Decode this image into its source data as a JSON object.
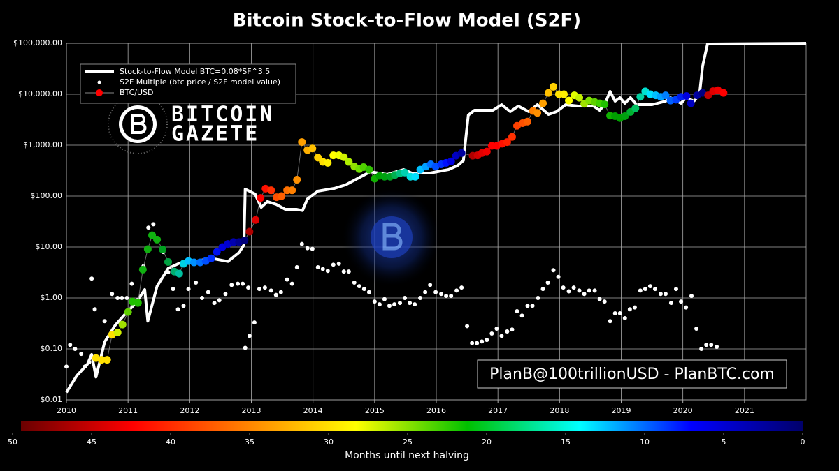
{
  "chart_data": {
    "type": "line",
    "title": "Bitcoin Stock-to-Flow Model (S2F)",
    "annotation": "PlanB@100trillionUSD - PlanBTC.com",
    "watermark": {
      "line1": "BITCOIN",
      "line2": "GAZETE"
    },
    "xlim": [
      2010,
      2022
    ],
    "xticks": [
      2010,
      2011,
      2012,
      2013,
      2014,
      2015,
      2016,
      2017,
      2018,
      2019,
      2020,
      2021
    ],
    "ylim": [
      0.01,
      100000
    ],
    "log_y": true,
    "yticks": [
      {
        "value": 0.01,
        "label": "$0.01"
      },
      {
        "value": 0.1,
        "label": "$0.10"
      },
      {
        "value": 1,
        "label": "$1.00"
      },
      {
        "value": 10,
        "label": "$10.00"
      },
      {
        "value": 100,
        "label": "$100.00"
      },
      {
        "value": 1000,
        "label": "$1,000.00"
      },
      {
        "value": 10000,
        "label": "$10,000.00"
      },
      {
        "value": 100000,
        "label": "$100,000.00"
      }
    ],
    "grid": true,
    "legend": "upper left",
    "series": [
      {
        "name": "Stock-to-Flow Model BTC=0.08*SF^3.5",
        "style": "line",
        "color": "#ffffff",
        "x": [
          2010.0,
          2010.17,
          2010.34,
          2010.41,
          2010.48,
          2010.62,
          2010.79,
          2010.95,
          2011.12,
          2011.27,
          2011.32,
          2011.47,
          2011.65,
          2011.83,
          2012.08,
          2012.35,
          2012.62,
          2012.8,
          2012.88,
          2012.9,
          2013.06,
          2013.16,
          2013.26,
          2013.4,
          2013.55,
          2013.73,
          2013.83,
          2013.91,
          2014.08,
          2014.35,
          2014.53,
          2014.74,
          2014.93,
          2015.2,
          2015.47,
          2015.6,
          2015.9,
          2016.2,
          2016.35,
          2016.44,
          2016.52,
          2016.62,
          2016.92,
          2017.06,
          2017.2,
          2017.33,
          2017.5,
          2017.64,
          2017.82,
          2017.95,
          2018.1,
          2018.3,
          2018.55,
          2018.65,
          2018.73,
          2018.82,
          2018.9,
          2018.98,
          2019.06,
          2019.15,
          2019.25,
          2019.5,
          2019.72,
          2019.8,
          2019.97,
          2020.05,
          2020.18,
          2020.27,
          2020.32,
          2020.4,
          2022.0
        ],
        "values": [
          0.014,
          0.03,
          0.05,
          0.078,
          0.028,
          0.137,
          0.29,
          0.48,
          0.78,
          1.46,
          0.35,
          1.7,
          3.8,
          4.8,
          5.2,
          6.0,
          5.2,
          7.8,
          11,
          137,
          110,
          60,
          78,
          69,
          55,
          55,
          52,
          88,
          125,
          142,
          166,
          227,
          301,
          266,
          332,
          283,
          283,
          332,
          401,
          500,
          3880,
          4840,
          4840,
          6230,
          4550,
          5850,
          4550,
          6230,
          4000,
          4550,
          6230,
          5850,
          5850,
          4840,
          6230,
          11350,
          7300,
          8550,
          6630,
          8550,
          6230,
          6230,
          7300,
          8550,
          6630,
          8550,
          7300,
          10000,
          35300,
          96900,
          100000
        ]
      },
      {
        "name": "S2F Multiple (btc price / S2F model value)",
        "style": "markers",
        "color": "#ffffff",
        "x": [
          2010.0,
          2010.06,
          2010.14,
          2010.24,
          2010.3,
          2010.37,
          2010.41,
          2010.46,
          2010.62,
          2010.74,
          2010.83,
          2010.9,
          2010.98,
          2011.06,
          2011.14,
          2011.25,
          2011.33,
          2011.41,
          2011.48,
          2011.57,
          2011.65,
          2011.73,
          2011.81,
          2011.9,
          2011.98,
          2012.1,
          2012.2,
          2012.3,
          2012.4,
          2012.48,
          2012.58,
          2012.68,
          2012.78,
          2012.86,
          2012.9,
          2012.95,
          2012.97,
          2013.05,
          2013.13,
          2013.22,
          2013.32,
          2013.4,
          2013.48,
          2013.58,
          2013.66,
          2013.74,
          2013.82,
          2013.91,
          2013.99,
          2014.08,
          2014.16,
          2014.24,
          2014.33,
          2014.42,
          2014.5,
          2014.58,
          2014.67,
          2014.75,
          2014.83,
          2014.91,
          2015.0,
          2015.08,
          2015.16,
          2015.24,
          2015.32,
          2015.41,
          2015.49,
          2015.57,
          2015.65,
          2015.74,
          2015.82,
          2015.9,
          2015.99,
          2016.08,
          2016.16,
          2016.24,
          2016.33,
          2016.41,
          2016.5,
          2016.58,
          2016.66,
          2016.74,
          2016.82,
          2016.9,
          2016.98,
          2017.06,
          2017.15,
          2017.23,
          2017.31,
          2017.39,
          2017.48,
          2017.56,
          2017.65,
          2017.73,
          2017.81,
          2017.9,
          2017.98,
          2018.06,
          2018.15,
          2018.23,
          2018.32,
          2018.4,
          2018.48,
          2018.57,
          2018.65,
          2018.73,
          2018.82,
          2018.9,
          2018.98,
          2019.06,
          2019.14,
          2019.22,
          2019.31,
          2019.39,
          2019.47,
          2019.55,
          2019.64,
          2019.72,
          2019.81,
          2019.89,
          2019.97,
          2020.05,
          2020.14,
          2020.22,
          2020.3,
          2020.38,
          2020.46,
          2020.55
        ],
        "values": [
          0.045,
          0.12,
          0.1,
          0.08,
          0.045,
          0.055,
          2.4,
          0.6,
          0.35,
          1.2,
          1.0,
          1.0,
          1.0,
          1.9,
          0.9,
          4.2,
          24,
          28,
          14,
          8,
          3.2,
          1.5,
          0.6,
          0.7,
          1.5,
          2.0,
          1.0,
          1.3,
          0.8,
          0.9,
          1.2,
          1.8,
          1.9,
          1.9,
          0.105,
          1.6,
          0.18,
          0.33,
          1.5,
          1.6,
          1.4,
          1.15,
          1.3,
          2.3,
          1.9,
          4.0,
          11.5,
          9.5,
          9.2,
          4.0,
          3.7,
          3.4,
          4.5,
          4.7,
          3.3,
          3.3,
          2.0,
          1.7,
          1.5,
          1.3,
          0.85,
          0.75,
          0.95,
          0.7,
          0.75,
          0.8,
          1.0,
          0.8,
          0.75,
          1.0,
          1.3,
          1.8,
          1.3,
          1.2,
          1.1,
          1.1,
          1.4,
          1.6,
          0.28,
          0.13,
          0.13,
          0.14,
          0.15,
          0.2,
          0.25,
          0.18,
          0.22,
          0.24,
          0.55,
          0.45,
          0.7,
          0.7,
          1.0,
          1.5,
          2.0,
          3.5,
          2.6,
          1.6,
          1.35,
          1.6,
          1.4,
          1.2,
          1.4,
          1.4,
          0.95,
          0.85,
          0.35,
          0.5,
          0.5,
          0.4,
          0.6,
          0.65,
          1.4,
          1.5,
          1.7,
          1.5,
          1.2,
          1.2,
          0.8,
          1.5,
          0.85,
          0.65,
          1.1,
          0.25,
          0.1,
          0.12,
          0.12,
          0.11
        ]
      },
      {
        "name": "BTC/USD",
        "style": "markers+line",
        "color": "#ff0000",
        "line_color": "#888888",
        "x": [
          2010.48,
          2010.57,
          2010.66,
          2010.74,
          2010.83,
          2010.91,
          2011.0,
          2011.07,
          2011.16,
          2011.24,
          2011.32,
          2011.39,
          2011.47,
          2011.56,
          2011.65,
          2011.75,
          2011.83,
          2011.9,
          2011.98,
          2012.07,
          2012.17,
          2012.26,
          2012.35,
          2012.44,
          2012.53,
          2012.62,
          2012.71,
          2012.8,
          2012.89,
          2012.97,
          2013.07,
          2013.15,
          2013.23,
          2013.32,
          2013.41,
          2013.49,
          2013.58,
          2013.66,
          2013.74,
          2013.82,
          2013.91,
          2013.99,
          2014.08,
          2014.16,
          2014.24,
          2014.33,
          2014.42,
          2014.5,
          2014.58,
          2014.67,
          2014.75,
          2014.82,
          2014.91,
          2015.0,
          2015.08,
          2015.16,
          2015.25,
          2015.33,
          2015.41,
          2015.49,
          2015.58,
          2015.66,
          2015.74,
          2015.83,
          2015.91,
          2015.99,
          2016.08,
          2016.16,
          2016.24,
          2016.32,
          2016.41,
          2016.59,
          2016.67,
          2016.74,
          2016.82,
          2016.9,
          2016.98,
          2017.07,
          2017.15,
          2017.23,
          2017.31,
          2017.4,
          2017.48,
          2017.57,
          2017.64,
          2017.73,
          2017.82,
          2017.9,
          2017.99,
          2018.07,
          2018.15,
          2018.24,
          2018.32,
          2018.4,
          2018.48,
          2018.57,
          2018.65,
          2018.73,
          2018.82,
          2018.9,
          2018.98,
          2019.06,
          2019.15,
          2019.23,
          2019.31,
          2019.39,
          2019.47,
          2019.56,
          2019.64,
          2019.72,
          2019.8,
          2019.89,
          2019.97,
          2020.06,
          2020.13,
          2020.23,
          2020.32,
          2020.41,
          2020.49,
          2020.57,
          2020.66
        ],
        "values": [
          0.066,
          0.061,
          0.061,
          0.19,
          0.21,
          0.3,
          0.53,
          0.85,
          0.8,
          3.6,
          9.1,
          17,
          14,
          9,
          5.1,
          3.3,
          3.0,
          4.7,
          5.3,
          5.0,
          5.0,
          5.3,
          6.0,
          8.0,
          10,
          11.5,
          12.5,
          12.5,
          13.5,
          20,
          34,
          92,
          140,
          130,
          95,
          100,
          130,
          130,
          210,
          1150,
          800,
          860,
          570,
          470,
          450,
          630,
          630,
          580,
          470,
          380,
          340,
          370,
          330,
          220,
          250,
          240,
          240,
          260,
          280,
          290,
          240,
          240,
          330,
          380,
          420,
          380,
          420,
          450,
          480,
          620,
          700,
          620,
          630,
          700,
          750,
          970,
          970,
          1070,
          1150,
          1450,
          2400,
          2700,
          2900,
          4700,
          4300,
          6600,
          10600,
          14000,
          10000,
          10000,
          7500,
          9500,
          8500,
          6500,
          7500,
          7000,
          6600,
          6300,
          3800,
          3700,
          3400,
          3700,
          4500,
          5300,
          8900,
          11400,
          10000,
          9500,
          8900,
          9500,
          7500,
          7800,
          8900,
          9200,
          6600,
          9500,
          10600,
          9500,
          11500,
          12000,
          10600
        ],
        "colors": [
          "#ffe000",
          "#ffe000",
          "#ffe000",
          "#ffe000",
          "#d0f000",
          "#a0e000",
          "#60d000",
          "#20c000",
          "#20c000",
          "#10b010",
          "#10b010",
          "#10b010",
          "#10b010",
          "#00a020",
          "#00a040",
          "#00b070",
          "#00c0a0",
          "#00d0e0",
          "#00c0ff",
          "#0090ff",
          "#0070ff",
          "#0050ff",
          "#0030ff",
          "#0010f0",
          "#0000e0",
          "#0000d0",
          "#0000b0",
          "#000090",
          "#00007a",
          "#b00000",
          "#e00000",
          "#ff0000",
          "#ff1000",
          "#ff3000",
          "#ff5000",
          "#ff6000",
          "#ff7000",
          "#ff8000",
          "#ff9000",
          "#ffa000",
          "#ffb000",
          "#ffc000",
          "#ffd000",
          "#ffe000",
          "#fff000",
          "#ffff00",
          "#f0ff00",
          "#d0f000",
          "#b0f000",
          "#90e000",
          "#70e000",
          "#50d000",
          "#30c000",
          "#10b000",
          "#00a000",
          "#00a010",
          "#00a020",
          "#00b050",
          "#00c080",
          "#00d0b0",
          "#00e0e0",
          "#00e0ff",
          "#00c0ff",
          "#00a0ff",
          "#0070ff",
          "#0050ff",
          "#0030ff",
          "#0010ff",
          "#0000e0",
          "#0000c0",
          "#0000a0",
          "#b00000",
          "#d00000",
          "#e00000",
          "#f00000",
          "#ff0000",
          "#ff0000",
          "#ff1000",
          "#ff2000",
          "#ff3000",
          "#ff4000",
          "#ff5000",
          "#ff6000",
          "#ff8000",
          "#ff9000",
          "#ffa000",
          "#ffc000",
          "#ffd000",
          "#ffe000",
          "#fff000",
          "#ffff00",
          "#e0ff00",
          "#c0f000",
          "#a0e000",
          "#80e000",
          "#60d000",
          "#40d000",
          "#20c000",
          "#10b000",
          "#00a000",
          "#00a000",
          "#00a010",
          "#00b030",
          "#00c060",
          "#00d0a0",
          "#00e0d0",
          "#00e0ff",
          "#00c0ff",
          "#00a0ff",
          "#0080ff",
          "#0060ff",
          "#0040ff",
          "#0020f0",
          "#0000e0",
          "#0000c0",
          "#0000a0",
          "#000080",
          "#c00000",
          "#e00000",
          "#f00000",
          "#ff0000"
        ]
      }
    ],
    "colorbar": {
      "label": "Months until next halving",
      "lim": [
        50,
        0
      ],
      "ticks": [
        50,
        45,
        40,
        35,
        30,
        25,
        20,
        15,
        10,
        5,
        0
      ],
      "colors": [
        "#6a0000",
        "#ff0000",
        "#ff8000",
        "#ffff00",
        "#00c000",
        "#00ffff",
        "#0000ff",
        "#00006a"
      ]
    }
  }
}
